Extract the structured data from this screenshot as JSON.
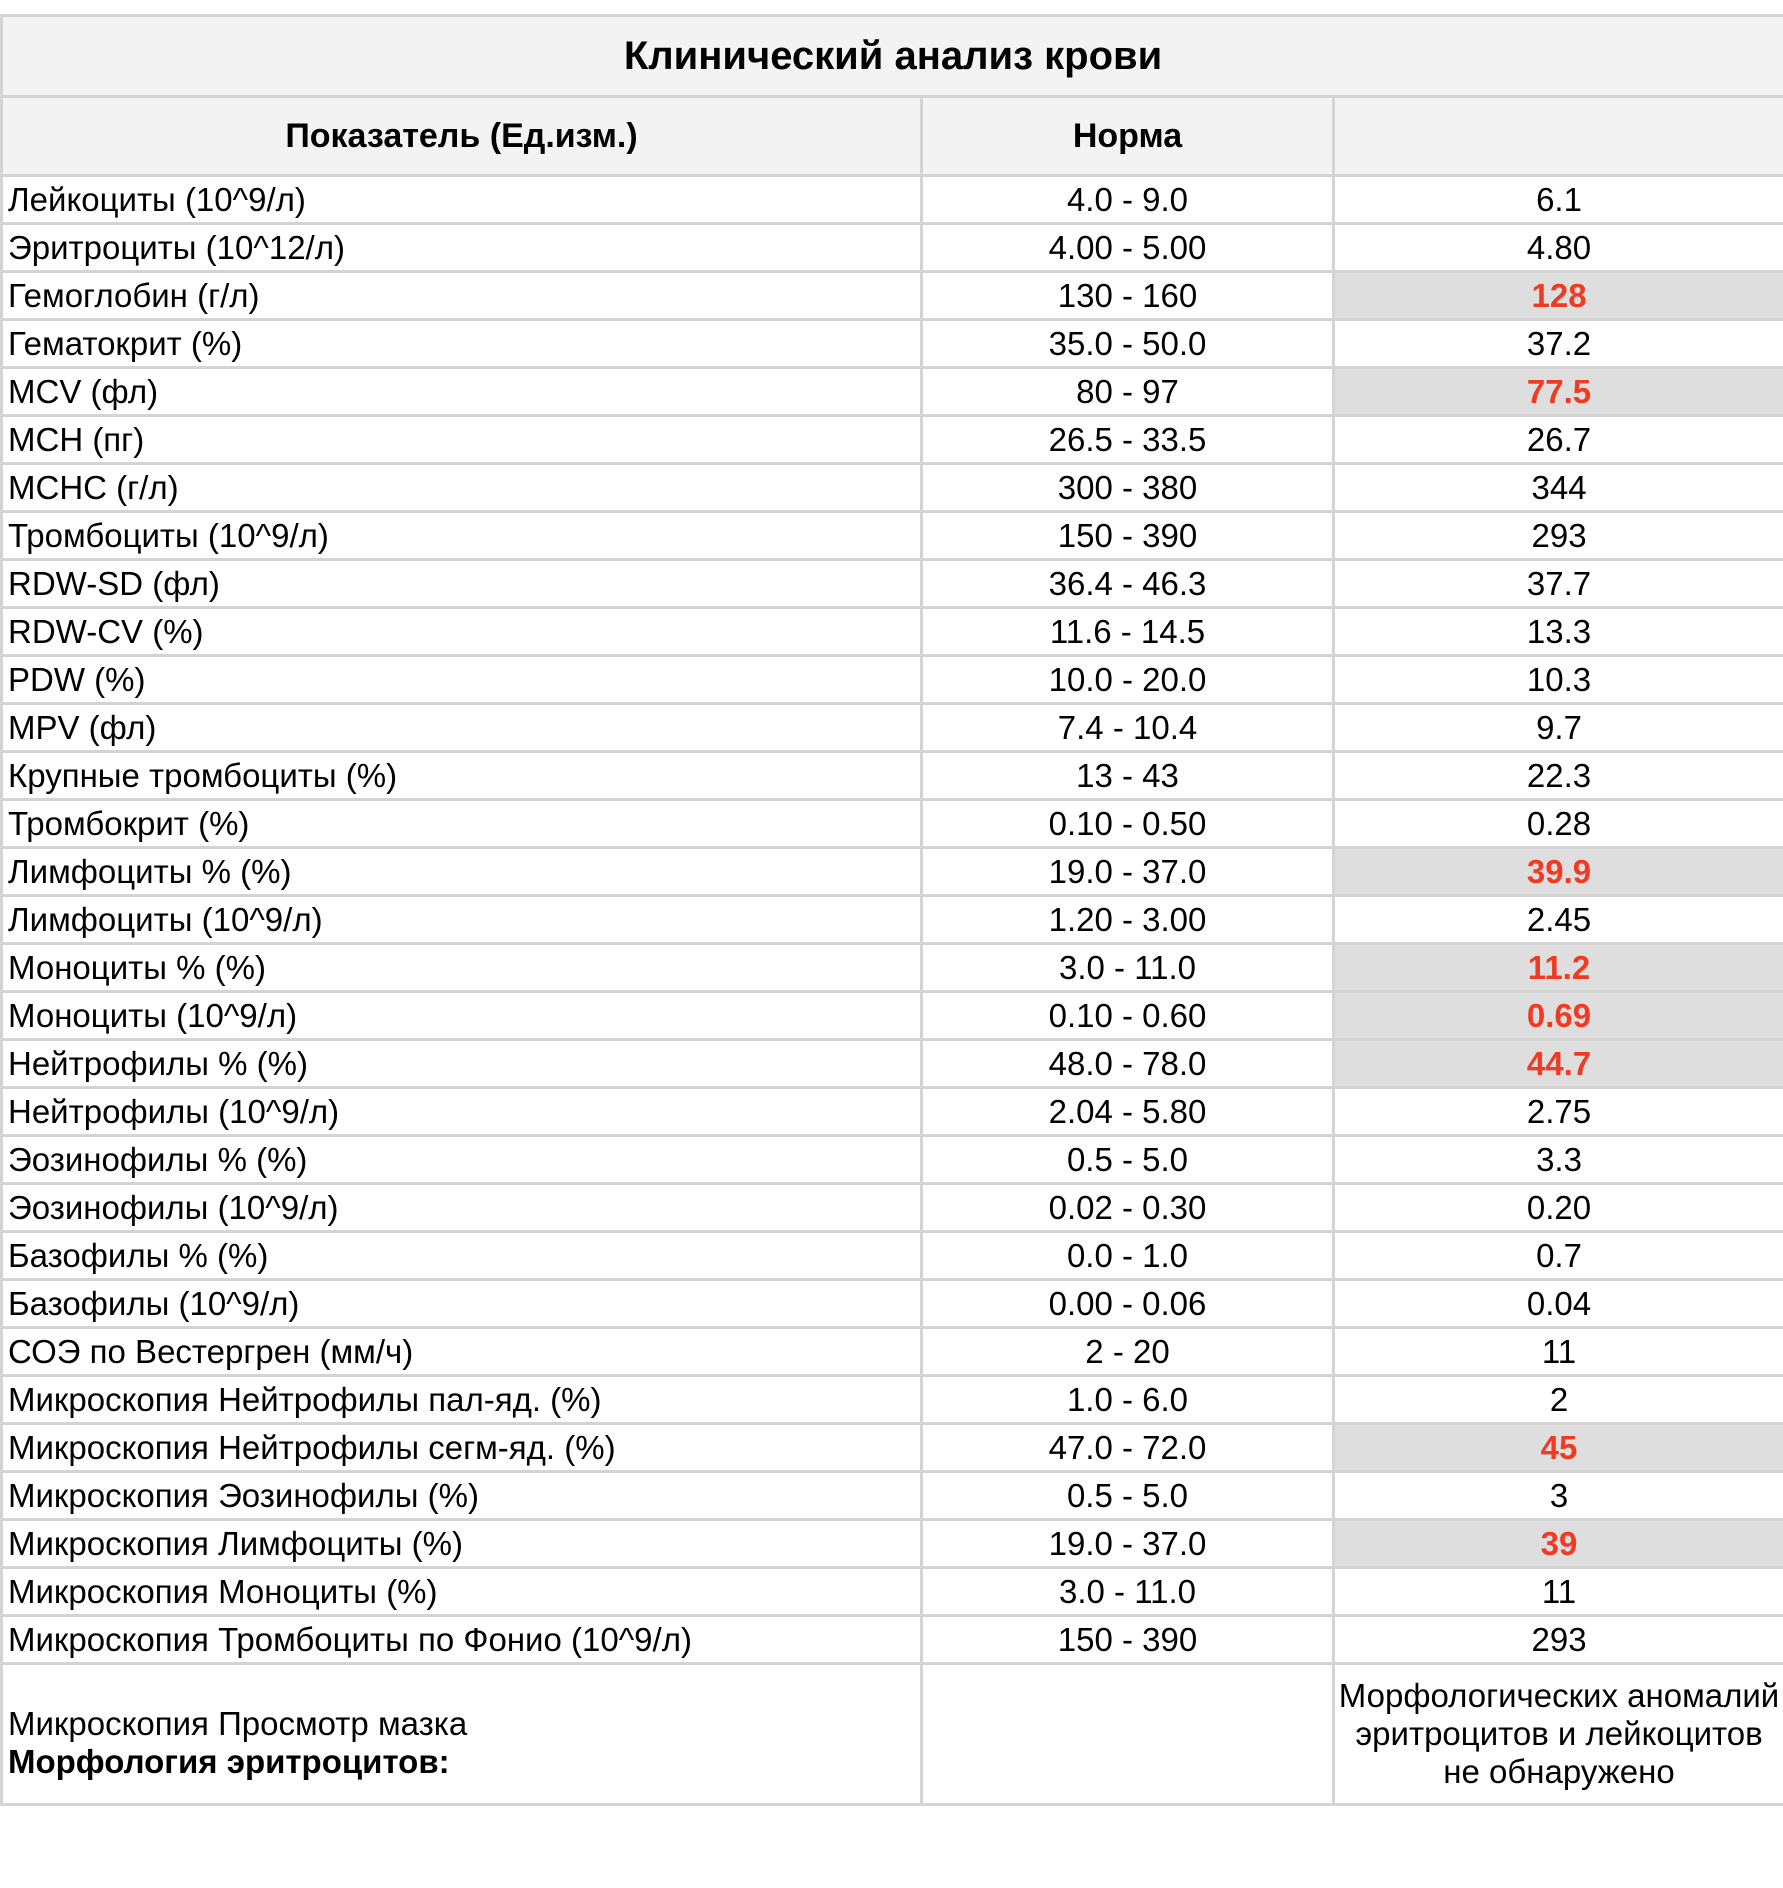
{
  "title": "Клинический анализ крови",
  "headers": {
    "indicator": "Показатель (Ед.изм.)",
    "norm": "Норма",
    "value": ""
  },
  "rows": [
    {
      "name": "Лейкоциты (10^9/л)",
      "norm": "4.0 - 9.0",
      "value": "6.1",
      "abnormal": false
    },
    {
      "name": "Эритроциты (10^12/л)",
      "norm": "4.00 - 5.00",
      "value": "4.80",
      "abnormal": false
    },
    {
      "name": "Гемоглобин (г/л)",
      "norm": "130 - 160",
      "value": "128",
      "abnormal": true
    },
    {
      "name": "Гематокрит (%)",
      "norm": "35.0 - 50.0",
      "value": "37.2",
      "abnormal": false
    },
    {
      "name": "MCV (фл)",
      "norm": "80 - 97",
      "value": "77.5",
      "abnormal": true
    },
    {
      "name": "MCH (пг)",
      "norm": "26.5 - 33.5",
      "value": "26.7",
      "abnormal": false
    },
    {
      "name": "MCHC (г/л)",
      "norm": "300 - 380",
      "value": "344",
      "abnormal": false
    },
    {
      "name": "Тромбоциты (10^9/л)",
      "norm": "150 - 390",
      "value": "293",
      "abnormal": false
    },
    {
      "name": "RDW-SD (фл)",
      "norm": "36.4 - 46.3",
      "value": "37.7",
      "abnormal": false
    },
    {
      "name": "RDW-CV (%)",
      "norm": "11.6 - 14.5",
      "value": "13.3",
      "abnormal": false
    },
    {
      "name": "PDW (%)",
      "norm": "10.0 - 20.0",
      "value": "10.3",
      "abnormal": false
    },
    {
      "name": "MPV (фл)",
      "norm": "7.4 - 10.4",
      "value": "9.7",
      "abnormal": false
    },
    {
      "name": "Крупные тромбоциты (%)",
      "norm": "13 - 43",
      "value": "22.3",
      "abnormal": false
    },
    {
      "name": "Тромбокрит (%)",
      "norm": "0.10 - 0.50",
      "value": "0.28",
      "abnormal": false
    },
    {
      "name": "Лимфоциты % (%)",
      "norm": "19.0 - 37.0",
      "value": "39.9",
      "abnormal": true
    },
    {
      "name": "Лимфоциты (10^9/л)",
      "norm": "1.20 - 3.00",
      "value": "2.45",
      "abnormal": false
    },
    {
      "name": "Моноциты % (%)",
      "norm": "3.0 - 11.0",
      "value": "11.2",
      "abnormal": true
    },
    {
      "name": "Моноциты (10^9/л)",
      "norm": "0.10 - 0.60",
      "value": "0.69",
      "abnormal": true
    },
    {
      "name": "Нейтрофилы % (%)",
      "norm": "48.0 - 78.0",
      "value": "44.7",
      "abnormal": true
    },
    {
      "name": "Нейтрофилы (10^9/л)",
      "norm": "2.04 - 5.80",
      "value": "2.75",
      "abnormal": false
    },
    {
      "name": "Эозинофилы % (%)",
      "norm": "0.5 - 5.0",
      "value": "3.3",
      "abnormal": false
    },
    {
      "name": "Эозинофилы (10^9/л)",
      "norm": "0.02 - 0.30",
      "value": "0.20",
      "abnormal": false
    },
    {
      "name": "Базофилы % (%)",
      "norm": "0.0 - 1.0",
      "value": "0.7",
      "abnormal": false
    },
    {
      "name": "Базофилы (10^9/л)",
      "norm": "0.00 - 0.06",
      "value": "0.04",
      "abnormal": false
    },
    {
      "name": "СОЭ по Вестергрен (мм/ч)",
      "norm": "2 - 20",
      "value": "11",
      "abnormal": false
    },
    {
      "name": "Микроскопия Нейтрофилы пал-яд. (%)",
      "norm": "1.0 - 6.0",
      "value": "2",
      "abnormal": false
    },
    {
      "name": "Микроскопия Нейтрофилы сегм-яд. (%)",
      "norm": "47.0 - 72.0",
      "value": "45",
      "abnormal": true
    },
    {
      "name": "Микроскопия Эозинофилы (%)",
      "norm": "0.5 - 5.0",
      "value": "3",
      "abnormal": false
    },
    {
      "name": "Микроскопия Лимфоциты (%)",
      "norm": "19.0 - 37.0",
      "value": "39",
      "abnormal": true
    },
    {
      "name": "Микроскопия Моноциты (%)",
      "norm": "3.0 - 11.0",
      "value": "11",
      "abnormal": false
    },
    {
      "name": "Микроскопия Тромбоциты по Фонио (10^9/л)",
      "norm": "150 - 390",
      "value": "293",
      "abnormal": false
    }
  ],
  "smear": {
    "name_line1": "Микроскопия Просмотр мазка",
    "name_line2": "Морфология эритроцитов:",
    "norm": "",
    "value": "Морфологических аномалий эритроцитов и лейкоцитов не обнаружено"
  },
  "colors": {
    "abnormal_text": "#ef3b24",
    "abnormal_bg": "#dedede",
    "header_bg": "#f3f3f3",
    "grid": "#d4d4d4"
  }
}
